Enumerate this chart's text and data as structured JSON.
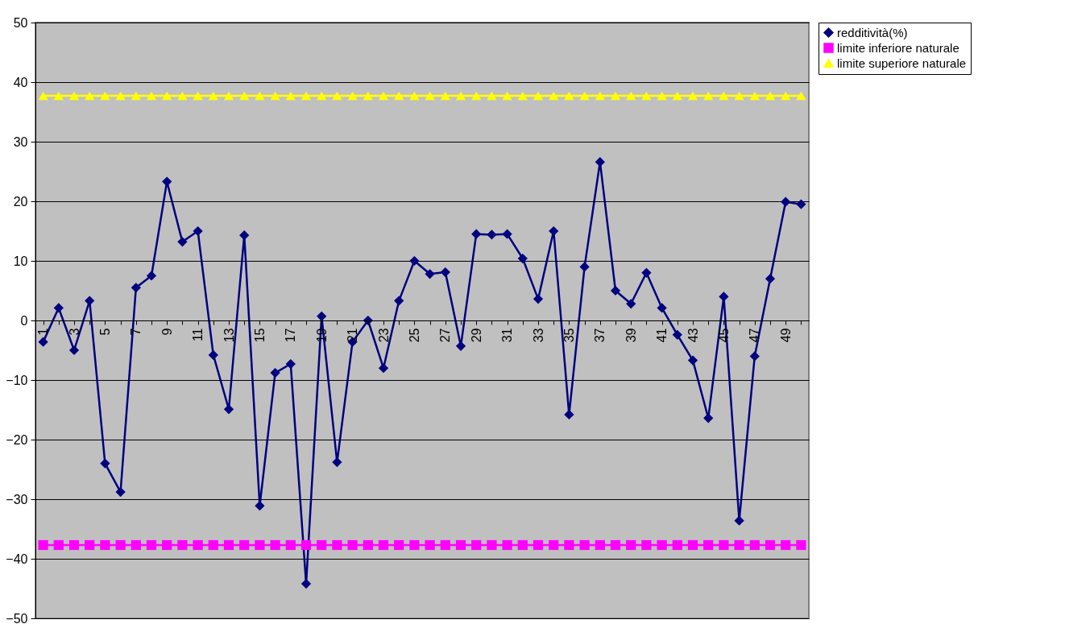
{
  "chart_data": {
    "type": "line",
    "categories": [
      "1",
      null,
      "3",
      null,
      "5",
      null,
      "7",
      null,
      "9",
      null,
      "11",
      null,
      "13",
      null,
      "15",
      null,
      "17",
      null,
      "19",
      null,
      "21",
      null,
      "23",
      null,
      "25",
      null,
      "27",
      null,
      "29",
      null,
      "31",
      null,
      "33",
      null,
      "35",
      null,
      "37",
      null,
      "39",
      null,
      "41",
      null,
      "43",
      null,
      "45",
      null,
      "47",
      null,
      "49",
      null
    ],
    "series": [
      {
        "name": "redditività(%)",
        "color": "#000080",
        "marker": "diamond",
        "values": [
          -3.6,
          2.1,
          -5,
          3.3,
          -24,
          -28.8,
          5.5,
          7.5,
          23.3,
          13.2,
          15,
          -5.8,
          -14.9,
          14.3,
          -31.1,
          -8.8,
          -7.3,
          -44.2,
          0.7,
          -23.8,
          -3.6,
          0,
          -8,
          3.3,
          10,
          7.8,
          8.1,
          -4.3,
          14.5,
          14.4,
          14.5,
          10.4,
          3.6,
          15,
          -15.8,
          9,
          26.6,
          5,
          2.8,
          8,
          2.1,
          -2.4,
          -6.7,
          -16.4,
          4,
          -33.6,
          -6,
          7,
          19.9,
          19.5
        ]
      },
      {
        "name": "limite inferiore naturale",
        "color": "#ff00ff",
        "marker": "square",
        "values": [
          -37.7,
          -37.7,
          -37.7,
          -37.7,
          -37.7,
          -37.7,
          -37.7,
          -37.7,
          -37.7,
          -37.7,
          -37.7,
          -37.7,
          -37.7,
          -37.7,
          -37.7,
          -37.7,
          -37.7,
          -37.7,
          -37.7,
          -37.7,
          -37.7,
          -37.7,
          -37.7,
          -37.7,
          -37.7,
          -37.7,
          -37.7,
          -37.7,
          -37.7,
          -37.7,
          -37.7,
          -37.7,
          -37.7,
          -37.7,
          -37.7,
          -37.7,
          -37.7,
          -37.7,
          -37.7,
          -37.7,
          -37.7,
          -37.7,
          -37.7,
          -37.7,
          -37.7,
          -37.7,
          -37.7,
          -37.7,
          -37.7,
          -37.7
        ]
      },
      {
        "name": "limite superiore naturale",
        "color": "#ffff00",
        "marker": "triangle",
        "values": [
          37.7,
          37.7,
          37.7,
          37.7,
          37.7,
          37.7,
          37.7,
          37.7,
          37.7,
          37.7,
          37.7,
          37.7,
          37.7,
          37.7,
          37.7,
          37.7,
          37.7,
          37.7,
          37.7,
          37.7,
          37.7,
          37.7,
          37.7,
          37.7,
          37.7,
          37.7,
          37.7,
          37.7,
          37.7,
          37.7,
          37.7,
          37.7,
          37.7,
          37.7,
          37.7,
          37.7,
          37.7,
          37.7,
          37.7,
          37.7,
          37.7,
          37.7,
          37.7,
          37.7,
          37.7,
          37.7,
          37.7,
          37.7,
          37.7,
          37.7
        ]
      }
    ],
    "ylim": [
      -50,
      50
    ],
    "yticks": [
      -50,
      -40,
      -30,
      -20,
      -10,
      0,
      10,
      20,
      30,
      40,
      50
    ],
    "grid": "y",
    "legend": "right",
    "line_style": "solid"
  }
}
